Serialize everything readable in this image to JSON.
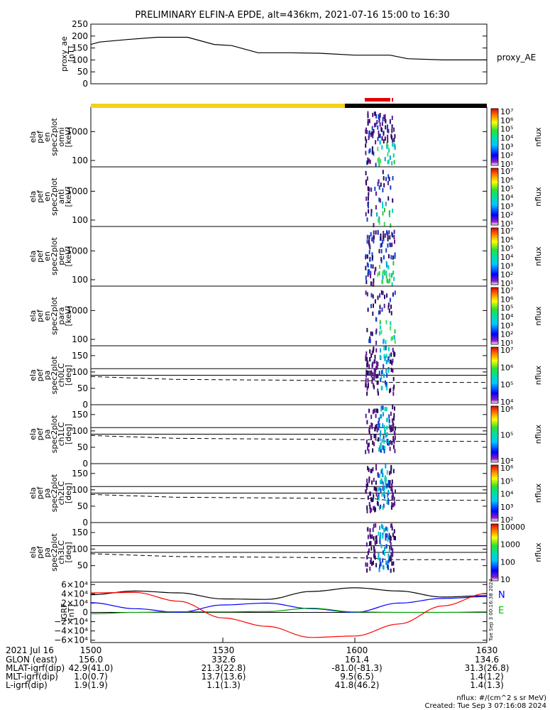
{
  "title": "PRELIMINARY ELFIN-A EPDE, alt=436km, 2021-07-16 15:00 to 16:30",
  "chart_data": [
    {
      "type": "line",
      "name": "proxy_ae",
      "ylabel_lines": [
        "proxy_ae",
        "[nT]"
      ],
      "ylim": [
        0,
        250
      ],
      "yticks": [
        "0",
        "50",
        "100",
        "150",
        "200",
        "250"
      ],
      "series_label": "proxy_AE",
      "x_minutes": [
        0,
        2,
        8,
        15,
        22,
        28,
        32,
        38,
        45,
        52,
        60,
        68,
        72,
        80,
        90
      ],
      "values": [
        165,
        175,
        185,
        195,
        195,
        165,
        160,
        130,
        130,
        128,
        120,
        120,
        105,
        100,
        100
      ]
    },
    {
      "type": "heatmap",
      "name": "ela_pef_en_spec2plot_omni",
      "ylabel_lines": [
        "ela",
        "pef",
        "en",
        "spec2plot",
        "omni",
        "[keV]"
      ],
      "yticks": [
        "100",
        "1000"
      ],
      "colorbar_label": "nflux",
      "colorbar_ticks": [
        "10¹",
        "10²",
        "10³",
        "10⁴",
        "10⁵",
        "10⁶",
        "10⁷"
      ]
    },
    {
      "type": "heatmap",
      "name": "ela_pef_en_spec2plot_anti",
      "ylabel_lines": [
        "ela",
        "pef",
        "en",
        "spec2plot",
        "anti",
        "[keV]"
      ],
      "yticks": [
        "100",
        "1000"
      ],
      "colorbar_label": "nflux",
      "colorbar_ticks": [
        "10¹",
        "10²",
        "10³",
        "10⁴",
        "10⁵",
        "10⁶",
        "10⁷"
      ]
    },
    {
      "type": "heatmap",
      "name": "ela_pef_en_spec2plot_perp",
      "ylabel_lines": [
        "ela",
        "pef",
        "en",
        "spec2plot",
        "perp",
        "[keV]"
      ],
      "yticks": [
        "100",
        "1000"
      ],
      "colorbar_label": "nflux",
      "colorbar_ticks": [
        "10¹",
        "10²",
        "10³",
        "10⁴",
        "10⁵",
        "10⁶",
        "10⁷"
      ]
    },
    {
      "type": "heatmap",
      "name": "ela_pef_en_spec2plot_para",
      "ylabel_lines": [
        "ela",
        "pef",
        "en",
        "spec2plot",
        "para",
        "[keV]"
      ],
      "yticks": [
        "100",
        "1000"
      ],
      "colorbar_label": "nflux",
      "colorbar_ticks": [
        "10¹",
        "10²",
        "10³",
        "10⁴",
        "10⁵",
        "10⁶",
        "10⁷"
      ]
    },
    {
      "type": "heatmap",
      "name": "ela_pef_pa_spec2plot_ch0LC",
      "ylabel_lines": [
        "ela",
        "pef",
        "pa",
        "spec2plot",
        "ch0LC",
        "[deg]"
      ],
      "yticks": [
        "0",
        "50",
        "100",
        "150"
      ],
      "colorbar_label": "nflux",
      "colorbar_ticks": [
        "10⁴",
        "10⁵",
        "10⁶",
        "10⁷"
      ]
    },
    {
      "type": "heatmap",
      "name": "ela_pef_pa_spec2plot_ch1LC",
      "ylabel_lines": [
        "ela",
        "pef",
        "pa",
        "spec2plot",
        "ch1LC",
        "[deg]"
      ],
      "yticks": [
        "0",
        "50",
        "100",
        "150"
      ],
      "colorbar_label": "nflux",
      "colorbar_ticks": [
        "10⁴",
        "10⁵",
        "10⁶"
      ]
    },
    {
      "type": "heatmap",
      "name": "ela_pef_pa_spec2plot_ch2LC",
      "ylabel_lines": [
        "ela",
        "pef",
        "pa",
        "spec2plot",
        "ch2LC",
        "[deg]"
      ],
      "yticks": [
        "0",
        "50",
        "100",
        "150"
      ],
      "colorbar_label": "nflux",
      "colorbar_ticks": [
        "10²",
        "10³",
        "10⁴",
        "10⁵",
        "10⁶"
      ]
    },
    {
      "type": "heatmap",
      "name": "ela_pef_pa_spec2plot_ch3LC",
      "ylabel_lines": [
        "ela",
        "pef",
        "pa",
        "spec2plot",
        "ch3LC",
        "[deg]"
      ],
      "yticks": [
        "50",
        "100",
        "150"
      ],
      "colorbar_label": "nflux",
      "colorbar_ticks": [
        "10",
        "100",
        "1000",
        "10000"
      ]
    },
    {
      "type": "line",
      "name": "IGRF",
      "ylabel_lines": [
        "IGRF",
        "[nT]"
      ],
      "yticks": [
        "−6×10⁴",
        "−4×10⁴",
        "−2×10⁴",
        "0",
        "2×10⁴",
        "4×10⁴",
        "6×10⁴"
      ],
      "legend": [
        "N",
        "E"
      ],
      "side_note": "Tue Sep  3 00:16:38 2024",
      "x_minutes": [
        0,
        10,
        20,
        30,
        40,
        50,
        60,
        70,
        80,
        90
      ],
      "series": [
        {
          "name": "black",
          "color": "#000000",
          "values": [
            38000,
            46000,
            42000,
            29000,
            28000,
            45000,
            53000,
            46000,
            33000,
            36000
          ]
        },
        {
          "name": "blue",
          "color": "#0000ff",
          "values": [
            21000,
            8000,
            0,
            16000,
            20000,
            8000,
            0,
            20000,
            30000,
            34000
          ]
        },
        {
          "name": "green",
          "color": "#00a000",
          "values": [
            -3000,
            0,
            1500,
            1000,
            2000,
            9000,
            1000,
            0,
            0,
            1000
          ]
        },
        {
          "name": "red",
          "color": "#ff0000",
          "values": [
            42000,
            43000,
            24000,
            -12000,
            -30000,
            -54000,
            -51000,
            -25000,
            14000,
            41000
          ]
        }
      ]
    }
  ],
  "xaxis": {
    "ticks": [
      "1500",
      "1530",
      "1600",
      "1630"
    ],
    "date": "2021 Jul 16",
    "rows": [
      {
        "label": "GLON (east)",
        "values": [
          "156.0",
          "332.6",
          "161.4",
          "134.6"
        ]
      },
      {
        "label": "MLAT-igrf(dip)",
        "values": [
          "42.9(41.0)",
          "21.3(22.8)",
          "-81.0(-81.3)",
          "31.3(26.8)"
        ]
      },
      {
        "label": "MLT-igrf(dip)",
        "values": [
          "1.0(0.7)",
          "13.7(13.6)",
          "9.5(6.5)",
          "1.4(1.2)"
        ]
      },
      {
        "label": "L-igrf(dip)",
        "values": [
          "1.9(1.9)",
          "1.1(1.3)",
          "41.8(46.2)",
          "1.4(1.3)"
        ]
      }
    ]
  },
  "footer": {
    "units": "nflux: #/(cm^2 s sr MeV)",
    "created": "Created: Tue Sep  3 07:16:08 2024"
  },
  "colors": {
    "day": "#f2d21b",
    "night": "#000000",
    "science": "#e00000"
  }
}
